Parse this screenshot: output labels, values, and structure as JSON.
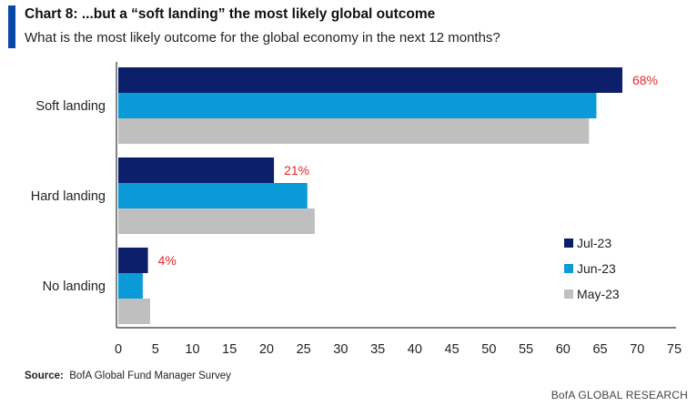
{
  "header": {
    "title": "Chart 8: ...but a “soft landing” the most likely global outcome",
    "subtitle": "What is the most likely outcome for the global economy in the next 12 months?"
  },
  "footer": {
    "source_label": "Source:",
    "source_text": "BofA Global Fund Manager Survey",
    "brand": "BofA GLOBAL RESEARCH"
  },
  "colors": {
    "accent": "#0a48a8",
    "jul": "#0b1f6b",
    "jun": "#0a9ad7",
    "may": "#bfbfbf",
    "label": "#e8262c"
  },
  "chart_data": {
    "type": "bar",
    "orientation": "horizontal",
    "categories": [
      "Soft landing",
      "Hard landing",
      "No landing"
    ],
    "series": [
      {
        "name": "Jul-23",
        "color": "#0b1f6b",
        "values": [
          68,
          21,
          4
        ]
      },
      {
        "name": "Jun-23",
        "color": "#0a9ad7",
        "values": [
          64.5,
          25.5,
          3.3
        ]
      },
      {
        "name": "May-23",
        "color": "#bfbfbf",
        "values": [
          63.5,
          26.5,
          4.3
        ]
      }
    ],
    "data_labels": [
      "68%",
      "21%",
      "4%"
    ],
    "xlim": [
      0,
      75
    ],
    "xticks": [
      0,
      5,
      10,
      15,
      20,
      25,
      30,
      35,
      40,
      45,
      50,
      55,
      60,
      65,
      70,
      75
    ],
    "grid": false,
    "legend_position": "bottom-right"
  }
}
